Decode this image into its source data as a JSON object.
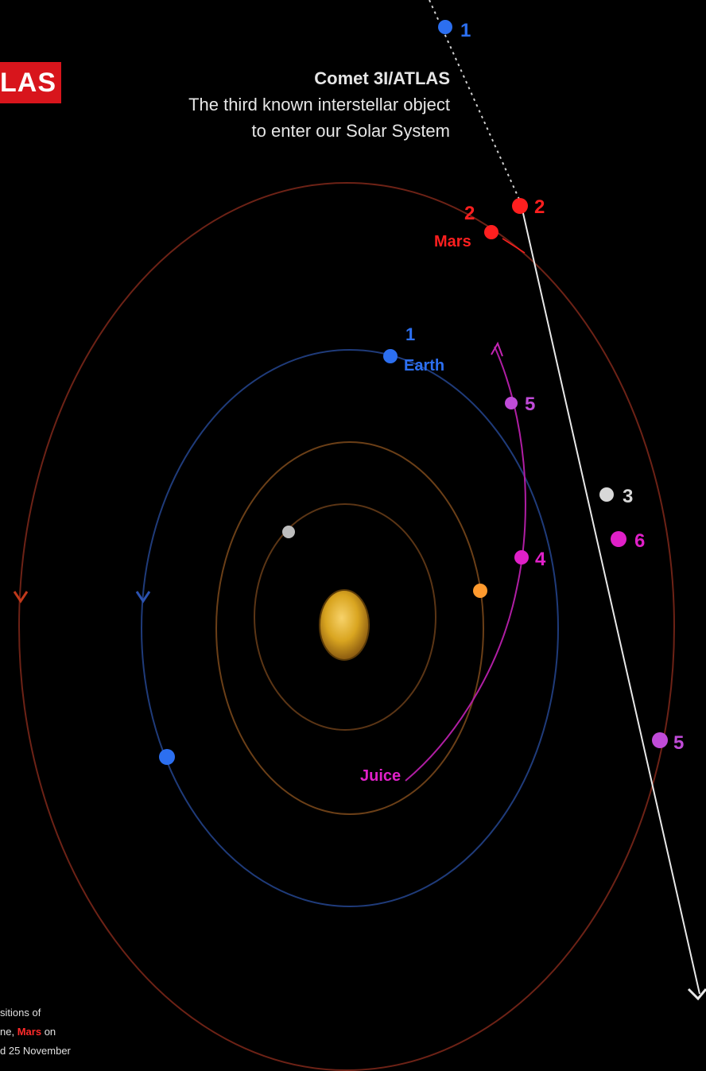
{
  "badge_text": "LAS",
  "headline": {
    "title": "Comet 3I/ATLAS",
    "line2": "The third known interstellar object",
    "line3": "to enter our Solar System"
  },
  "caption": {
    "line1": "sitions of",
    "line2_pre": "ne,",
    "line2_mars": "Mars",
    "line2_post": "on",
    "line3": "d 25 November"
  },
  "colors": {
    "background": "#000000",
    "sun": "#d9a520",
    "mercury_orbit": "#6b3f17",
    "venus_orbit": "#5a3414",
    "earth_orbit": "#1f3b7a",
    "mars_orbit": "#7a2318",
    "comet_path": "#e8e8e8",
    "earth": "#2c6ff0",
    "mars": "#ff1f1f",
    "juice": "#e020c8",
    "comet": "#d8d8d8",
    "venus": "#ff9a2e",
    "mercury": "#bdbdbd"
  },
  "labels": {
    "earth": "Earth",
    "mars": "Mars",
    "juice": "Juice"
  },
  "markers": {
    "comet": [
      "1",
      "2",
      "3",
      "5"
    ],
    "earth": [
      "1"
    ],
    "mars": [
      "2"
    ],
    "juice": [
      "4",
      "5",
      "6"
    ]
  }
}
